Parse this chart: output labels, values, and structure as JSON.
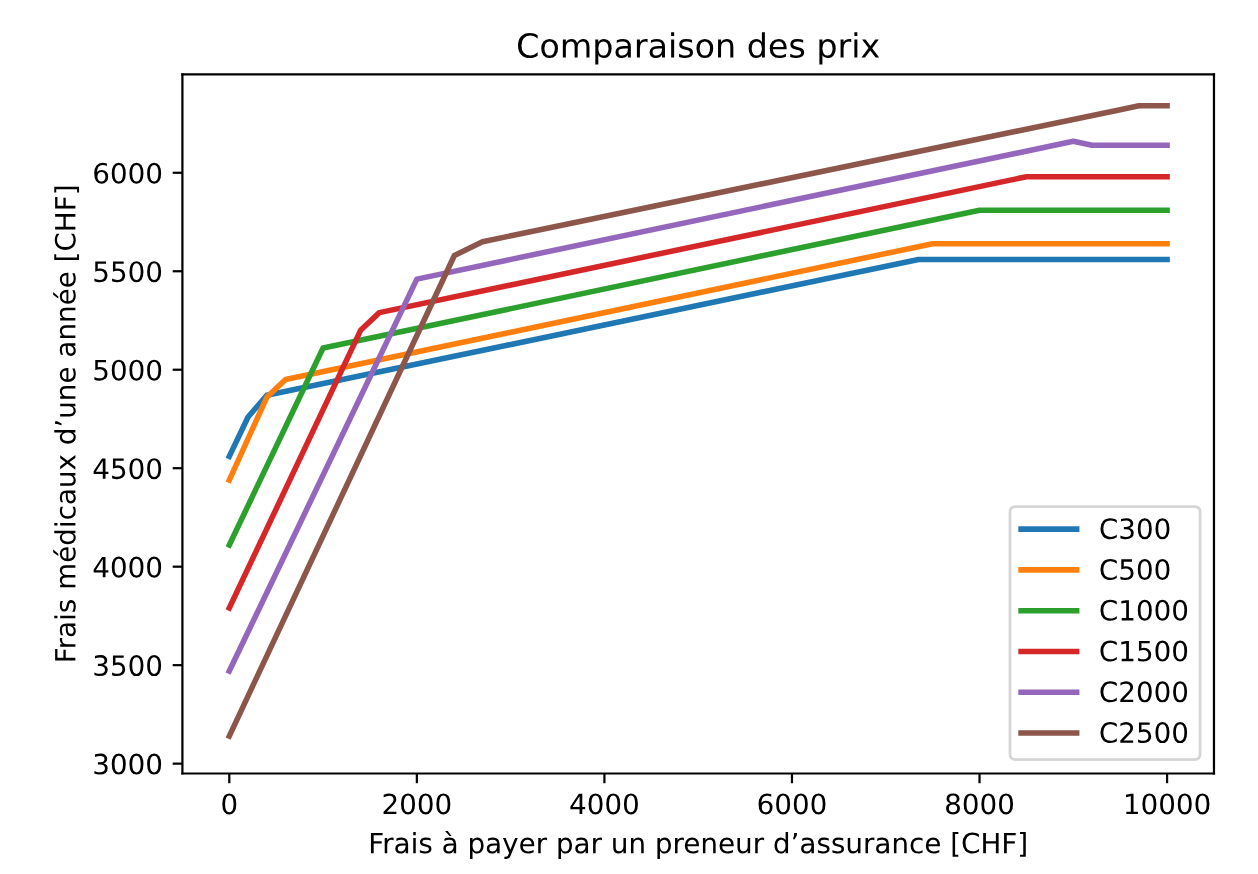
{
  "chart_data": {
    "type": "line",
    "title": "Comparaison des prix",
    "xlabel": "Frais à payer par un preneur d’assurance [CHF]",
    "ylabel": "Frais médicaux d’une année [CHF]",
    "xlim": [
      -500,
      10500
    ],
    "xticks": [
      0,
      2000,
      4000,
      6000,
      8000,
      10000
    ],
    "ylim": [
      2950,
      6500
    ],
    "yticks": [
      3000,
      3500,
      4000,
      4500,
      5000,
      5500,
      6000
    ],
    "grid": false,
    "legend": "bottom right",
    "series": [
      {
        "name": "C300",
        "color": "#1f77b4",
        "x": [
          0,
          200,
          400,
          7350,
          10000
        ],
        "values": [
          4560,
          4760,
          4870,
          5560,
          5560
        ]
      },
      {
        "name": "C500",
        "color": "#ff7f0e",
        "x": [
          0,
          400,
          600,
          7500,
          10000
        ],
        "values": [
          4440,
          4860,
          4950,
          5640,
          5640
        ]
      },
      {
        "name": "C1000",
        "color": "#2ca02c",
        "x": [
          0,
          1000,
          8000,
          10000
        ],
        "values": [
          4110,
          5110,
          5810,
          5810
        ]
      },
      {
        "name": "C1500",
        "color": "#d62728",
        "x": [
          0,
          1400,
          1600,
          8500,
          10000
        ],
        "values": [
          3790,
          5200,
          5290,
          5980,
          5980
        ]
      },
      {
        "name": "C2000",
        "color": "#9467bd",
        "x": [
          0,
          2000,
          9000,
          9200,
          10000
        ],
        "values": [
          3470,
          5460,
          6160,
          6140,
          6140
        ]
      },
      {
        "name": "C2500",
        "color": "#8c564b",
        "x": [
          0,
          2400,
          2700,
          9500,
          9700,
          10000
        ],
        "values": [
          3140,
          5580,
          5650,
          6320,
          6340,
          6340
        ]
      }
    ]
  }
}
